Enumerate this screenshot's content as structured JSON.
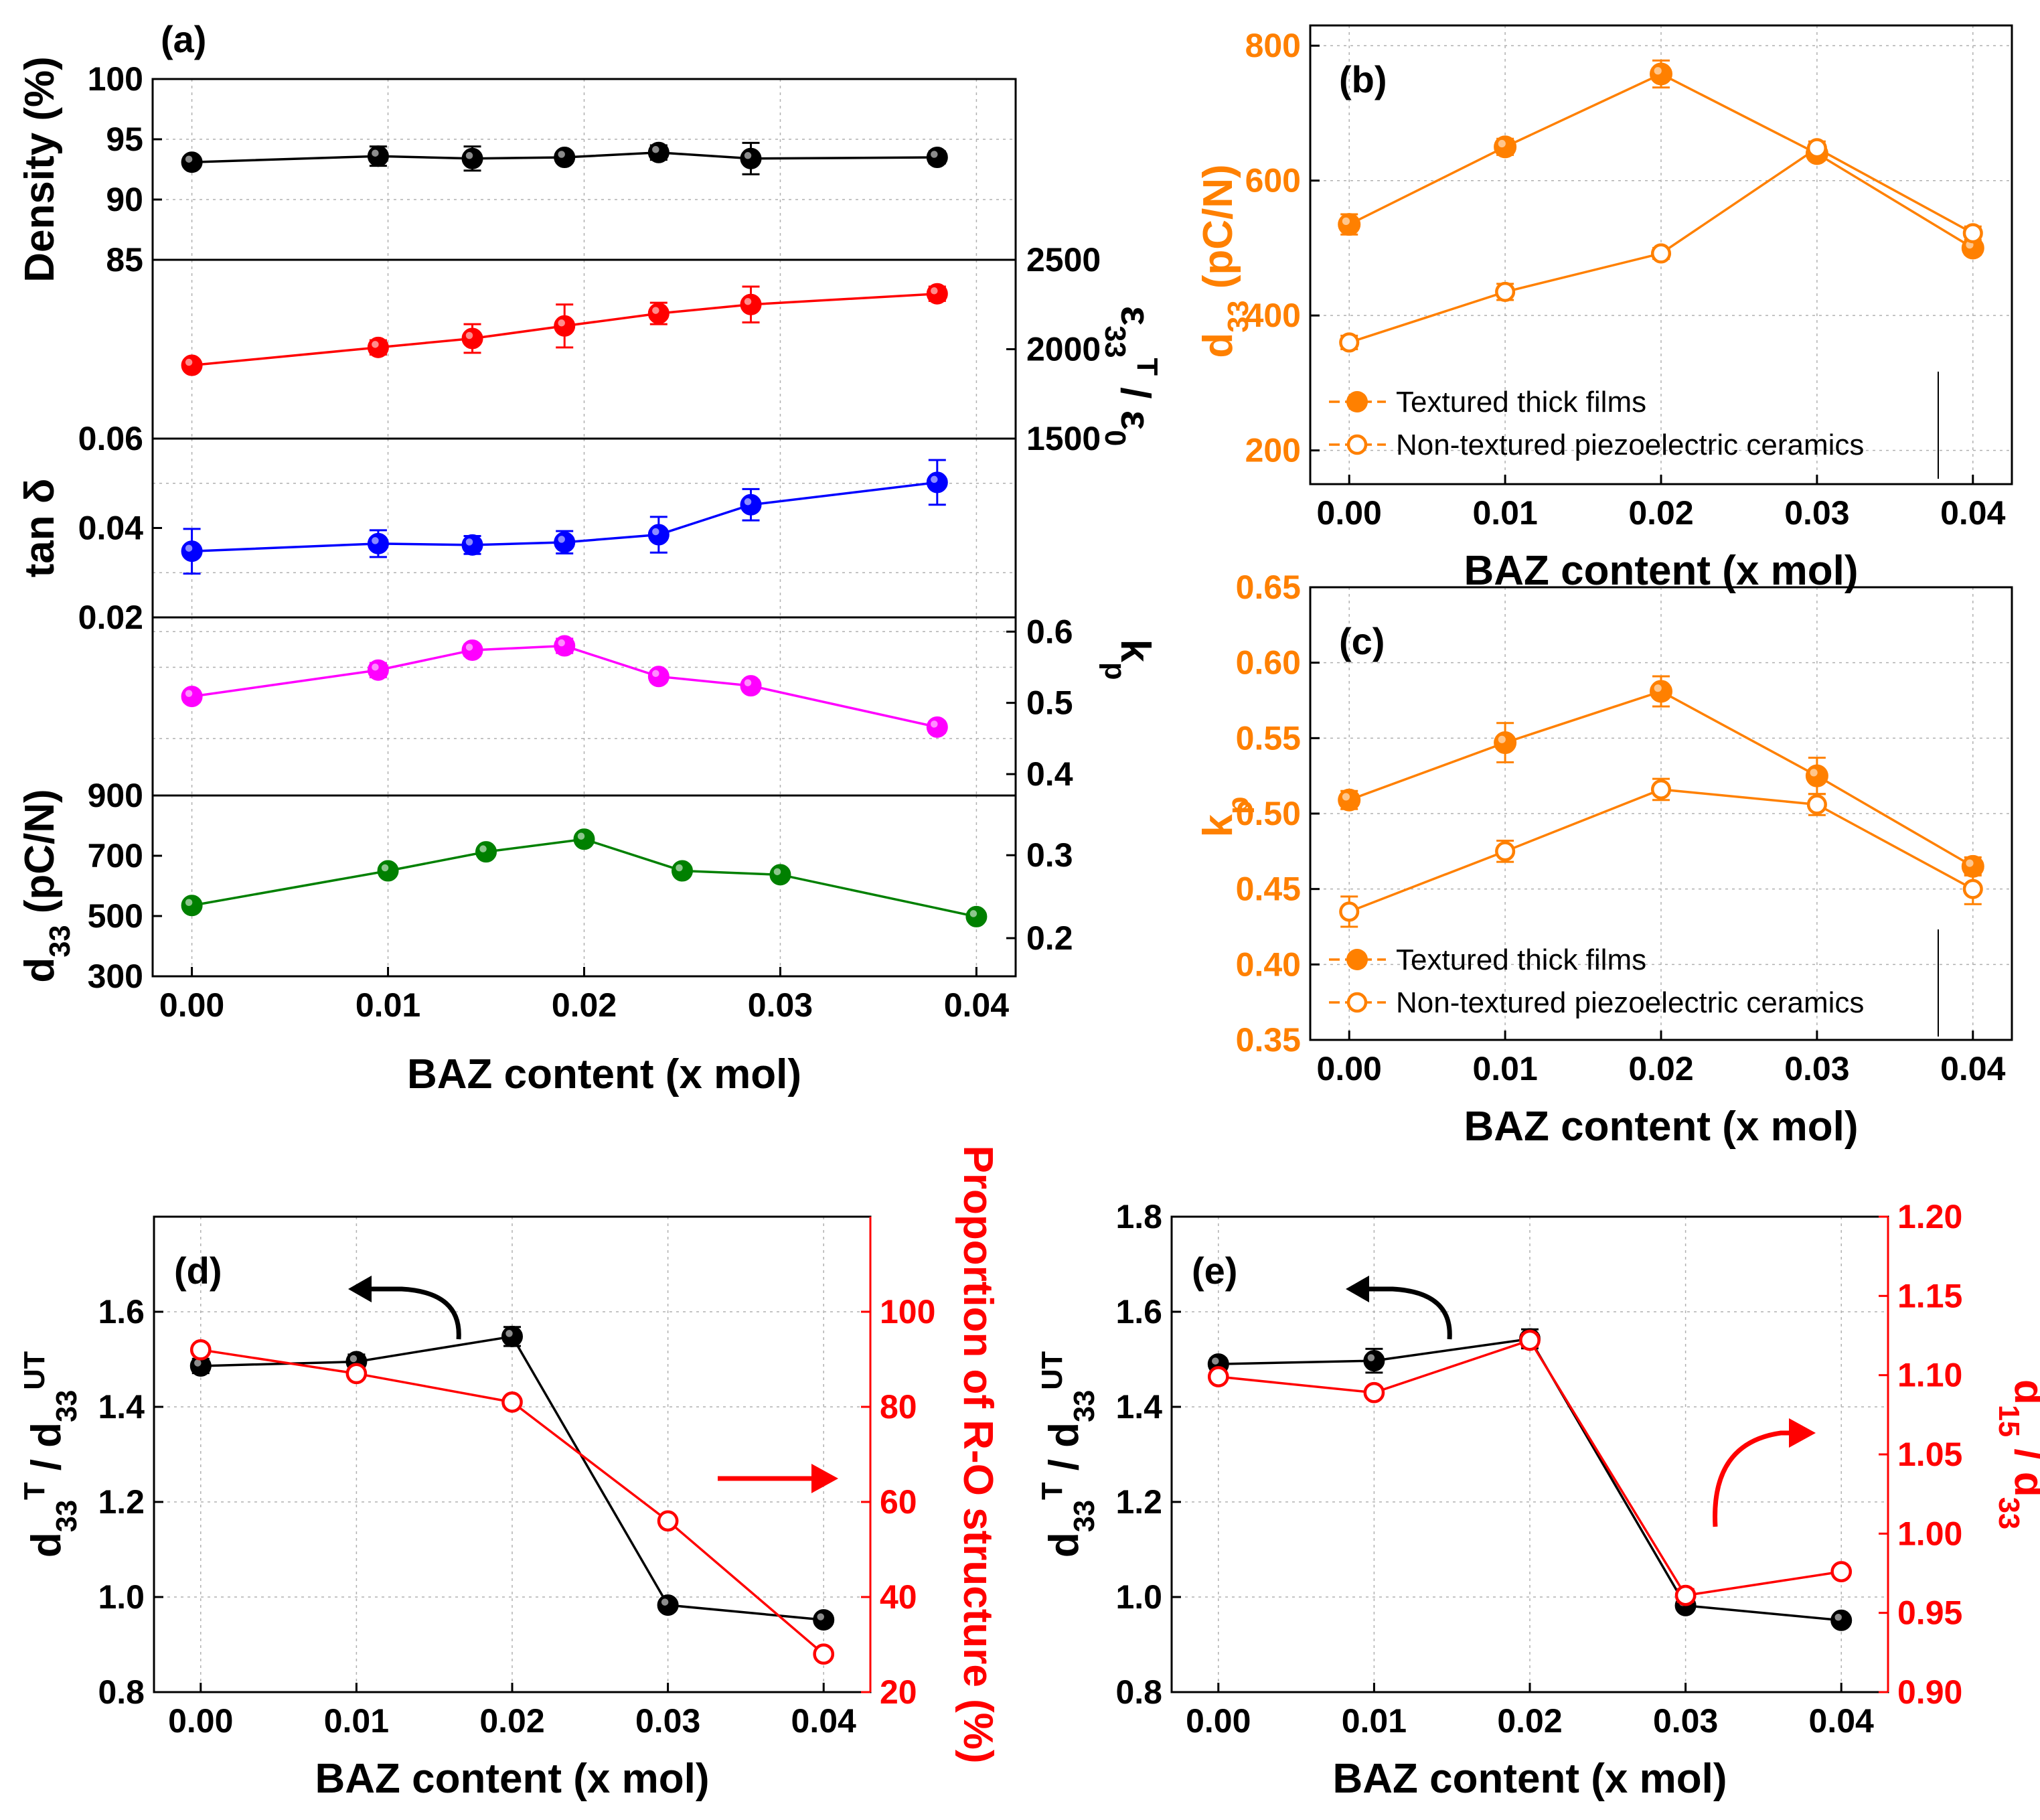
{
  "figure_labels": {
    "a": "(a)",
    "b": "(b)",
    "c": "(c)",
    "d": "(d)",
    "e": "(e)"
  },
  "colors": {
    "black": "#000000",
    "red": "#ff0000",
    "blue": "#0000ff",
    "magenta": "#ff00ff",
    "green": "#008000",
    "orange": "#ff8000",
    "grid": "#b0b0b0"
  },
  "chart_data": [
    {
      "id": "a",
      "type": "line",
      "title": "(a)",
      "xlabel": "BAZ content (x mol)",
      "xlim": [
        -0.002,
        0.042
      ],
      "xticks": [
        0.0,
        0.01,
        0.02,
        0.03,
        0.04
      ],
      "xtick_labels": [
        "0.00",
        "0.01",
        "0.02",
        "0.03",
        "0.04"
      ],
      "panels": [
        {
          "name": "density",
          "ylabel": "Density (%)",
          "axis_side": "left",
          "ylim": [
            85,
            100
          ],
          "yticks": [
            85,
            90,
            95,
            100
          ],
          "series": [
            {
              "name": "Density",
              "color": "#000000",
              "x": [
                0.0,
                0.0095,
                0.0143,
                0.019,
                0.0238,
                0.0285,
                0.038
              ],
              "y": [
                93.1,
                93.6,
                93.4,
                93.5,
                93.9,
                93.4,
                93.5
              ],
              "err": [
                0.3,
                0.8,
                1.0,
                0.4,
                0.6,
                1.3,
                0.5
              ]
            }
          ]
        },
        {
          "name": "permittivity",
          "ylabel": "ε33T / ε0",
          "axis_side": "right",
          "ylim": [
            1500,
            2500
          ],
          "yticks": [
            1500,
            2000,
            2500
          ],
          "series": [
            {
              "name": "Relative permittivity",
              "color": "#ff0000",
              "x": [
                0.0,
                0.0095,
                0.0143,
                0.019,
                0.0238,
                0.0285,
                0.038
              ],
              "y": [
                1910,
                2010,
                2060,
                2130,
                2200,
                2250,
                2310
              ],
              "err": [
                30,
                40,
                80,
                120,
                60,
                100,
                40
              ]
            }
          ]
        },
        {
          "name": "tan_delta",
          "ylabel": "tan δ",
          "axis_side": "left",
          "ylim": [
            0.02,
            0.06
          ],
          "yticks": [
            0.02,
            0.04,
            0.06
          ],
          "series": [
            {
              "name": "tan δ",
              "color": "#0000ff",
              "x": [
                0.0,
                0.0095,
                0.0143,
                0.019,
                0.0238,
                0.0285,
                0.038
              ],
              "y": [
                0.0348,
                0.0365,
                0.0362,
                0.0368,
                0.0385,
                0.0452,
                0.0502
              ],
              "err": [
                0.005,
                0.003,
                0.002,
                0.0025,
                0.004,
                0.0035,
                0.005
              ]
            }
          ]
        },
        {
          "name": "kp",
          "ylabel": "kp",
          "axis_side": "right",
          "ylim": [
            0.37,
            0.62
          ],
          "yticks": [
            0.4,
            0.5,
            0.6
          ],
          "series": [
            {
              "name": "kp",
              "color": "#ff00ff",
              "x": [
                0.0,
                0.0095,
                0.0143,
                0.019,
                0.0238,
                0.0285,
                0.038
              ],
              "y": [
                0.509,
                0.546,
                0.574,
                0.58,
                0.537,
                0.524,
                0.466
              ],
              "err": [
                0.008,
                0.01,
                0.008,
                0.01,
                0.008,
                0.008,
                0.008
              ]
            }
          ]
        },
        {
          "name": "d33",
          "ylabel": "d33 (pC/N)",
          "axis_side": "left",
          "ylim": [
            300,
            900
          ],
          "yticks": [
            300,
            500,
            700,
            900
          ],
          "right_ylim": [
            0.154,
            0.372
          ],
          "right_yticks": [
            0.2,
            0.3
          ],
          "series": [
            {
              "name": "d33",
              "color": "#008000",
              "x": [
                0.0,
                0.01,
                0.015,
                0.02,
                0.025,
                0.03,
                0.04
              ],
              "y": [
                535,
                650,
                713,
                755,
                650,
                637,
                498
              ],
              "err": [
                10,
                12,
                12,
                15,
                12,
                10,
                10
              ]
            }
          ]
        }
      ]
    },
    {
      "id": "b",
      "type": "line",
      "title": "(b)",
      "xlabel": "BAZ content (x mol)",
      "ylabel": "d33 (pC/N)",
      "xlim": [
        -0.0025,
        0.0425
      ],
      "ylim": [
        150,
        830
      ],
      "xticks": [
        0.0,
        0.01,
        0.02,
        0.03,
        0.04
      ],
      "xtick_labels": [
        "0.00",
        "0.01",
        "0.02",
        "0.03",
        "0.04"
      ],
      "yticks": [
        200,
        400,
        600,
        800
      ],
      "legend_position": "bottom-left",
      "series": [
        {
          "name": "Textured thick films",
          "marker": "filled",
          "color": "#ff8000",
          "x": [
            0.0,
            0.01,
            0.02,
            0.03,
            0.04
          ],
          "y": [
            535,
            650,
            758,
            640,
            500
          ],
          "err": [
            15,
            12,
            20,
            10,
            10
          ]
        },
        {
          "name": "Non-textured piezoelectric ceramics",
          "marker": "open",
          "color": "#ff8000",
          "x": [
            0.0,
            0.01,
            0.02,
            0.03,
            0.04
          ],
          "y": [
            360,
            435,
            492,
            648,
            522
          ],
          "err": [
            10,
            12,
            8,
            10,
            10
          ]
        }
      ]
    },
    {
      "id": "c",
      "type": "line",
      "title": "(c)",
      "xlabel": "BAZ content (x mol)",
      "ylabel": "kp",
      "xlim": [
        -0.0025,
        0.0425
      ],
      "ylim": [
        0.35,
        0.65
      ],
      "xticks": [
        0.0,
        0.01,
        0.02,
        0.03,
        0.04
      ],
      "xtick_labels": [
        "0.00",
        "0.01",
        "0.02",
        "0.03",
        "0.04"
      ],
      "yticks": [
        0.35,
        0.4,
        0.45,
        0.5,
        0.55,
        0.6,
        0.65
      ],
      "ytick_labels": [
        "0.35",
        "0.40",
        "0.45",
        "0.50",
        "0.55",
        "0.60",
        "0.65"
      ],
      "legend_position": "bottom-left",
      "series": [
        {
          "name": "Textured thick films",
          "marker": "filled",
          "color": "#ff8000",
          "x": [
            0.0,
            0.01,
            0.02,
            0.03,
            0.04
          ],
          "y": [
            0.509,
            0.547,
            0.581,
            0.525,
            0.465
          ],
          "err": [
            0.006,
            0.013,
            0.01,
            0.012,
            0.006
          ]
        },
        {
          "name": "Non-textured piezoelectric ceramics",
          "marker": "open",
          "color": "#ff8000",
          "x": [
            0.0,
            0.01,
            0.02,
            0.03,
            0.04
          ],
          "y": [
            0.435,
            0.475,
            0.516,
            0.506,
            0.45
          ],
          "err": [
            0.01,
            0.007,
            0.007,
            0.007,
            0.01
          ]
        }
      ]
    },
    {
      "id": "d",
      "type": "line",
      "title": "(d)",
      "xlabel": "BAZ content (x mol)",
      "ylabel": "d33T / d33UT",
      "ylabel_right": "Proportion of R-O structure (%)",
      "xlim": [
        -0.003,
        0.043
      ],
      "ylim": [
        0.8,
        1.8
      ],
      "yticks": [
        0.8,
        1.0,
        1.2,
        1.4,
        1.6
      ],
      "ytick_labels": [
        "0.8",
        "1.0",
        "1.2",
        "1.4",
        "1.6"
      ],
      "ylim_right": [
        20,
        120
      ],
      "yticks_right": [
        20,
        40,
        60,
        80,
        100
      ],
      "xticks": [
        0.0,
        0.01,
        0.02,
        0.03,
        0.04
      ],
      "xtick_labels": [
        "0.00",
        "0.01",
        "0.02",
        "0.03",
        "0.04"
      ],
      "series": [
        {
          "name": "d33T / d33UT",
          "axis": "left",
          "marker": "filled",
          "color": "#000000",
          "x": [
            0.0,
            0.01,
            0.02,
            0.03,
            0.04
          ],
          "y": [
            1.486,
            1.495,
            1.548,
            0.983,
            0.952
          ],
          "err": [
            0.015,
            0.015,
            0.02,
            0.008,
            0.008
          ]
        },
        {
          "name": "Proportion of R-O structure",
          "axis": "right",
          "marker": "open",
          "color": "#ff0000",
          "x": [
            0.0,
            0.01,
            0.02,
            0.03,
            0.04
          ],
          "y": [
            92,
            87,
            81,
            56,
            28
          ]
        }
      ]
    },
    {
      "id": "e",
      "type": "line",
      "title": "(e)",
      "xlabel": "BAZ content (x mol)",
      "ylabel": "d33T / d33UT",
      "ylabel_right": "d15 / d33",
      "xlim": [
        -0.003,
        0.043
      ],
      "ylim": [
        0.8,
        1.8
      ],
      "yticks": [
        0.8,
        1.0,
        1.2,
        1.4,
        1.6,
        1.8
      ],
      "ytick_labels": [
        "0.8",
        "1.0",
        "1.2",
        "1.4",
        "1.6",
        "1.8"
      ],
      "ylim_right": [
        0.9,
        1.2
      ],
      "yticks_right": [
        0.9,
        0.95,
        1.0,
        1.05,
        1.1,
        1.15,
        1.2
      ],
      "ytick_labels_right": [
        "0.90",
        "0.95",
        "1.00",
        "1.05",
        "1.10",
        "1.15",
        "1.20"
      ],
      "xticks": [
        0.0,
        0.01,
        0.02,
        0.03,
        0.04
      ],
      "xtick_labels": [
        "0.00",
        "0.01",
        "0.02",
        "0.03",
        "0.04"
      ],
      "series": [
        {
          "name": "d33T / d33UT",
          "axis": "left",
          "marker": "filled",
          "color": "#000000",
          "x": [
            0.0,
            0.01,
            0.02,
            0.03,
            0.04
          ],
          "y": [
            1.49,
            1.497,
            1.543,
            0.982,
            0.951
          ],
          "err": [
            0.012,
            0.025,
            0.02,
            0.008,
            0.008
          ]
        },
        {
          "name": "d15 / d33",
          "axis": "right",
          "marker": "open",
          "color": "#ff0000",
          "x": [
            0.0,
            0.01,
            0.02,
            0.03,
            0.04
          ],
          "y": [
            1.099,
            1.089,
            1.122,
            0.961,
            0.976
          ],
          "err": [
            0.003,
            0.003,
            0.004,
            0.004,
            0.003
          ]
        }
      ]
    }
  ]
}
